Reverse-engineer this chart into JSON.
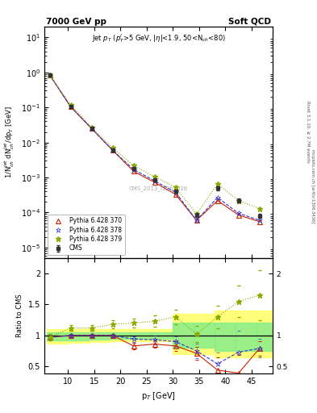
{
  "title_left": "7000 GeV pp",
  "title_right": "Soft QCD",
  "inner_title": "Jet $p_T$ ($p_T^l$>5 GeV, |$\\eta$|<1.9, 50<N$_{ch}$<80)",
  "ylabel_main": "1/N$_{ch}^{jet}$ dN$_{ch}^{jet}$/dp$_T$ [GeV]",
  "ylabel_ratio": "Ratio to CMS",
  "xlabel": "p$_T$ [GeV]",
  "watermark": "CMS_2013_I1261026",
  "rivet_text": "Rivet 3.1.10, ≥ 2.7M events",
  "mcplots_text": "mcplots.cern.ch [arXiv:1306.3436]",
  "cms_pt": [
    6.5,
    10.5,
    14.5,
    18.5,
    22.5,
    26.5,
    30.5,
    34.5,
    38.5,
    42.5,
    46.5
  ],
  "cms_y": [
    0.85,
    0.105,
    0.025,
    0.006,
    0.0018,
    0.00085,
    0.0004,
    8.5e-05,
    0.0005,
    0.00022,
    8e-05
  ],
  "cms_yerr": [
    0.06,
    0.008,
    0.002,
    0.0004,
    0.00012,
    6e-05,
    3e-05,
    1e-05,
    6e-05,
    3e-05,
    1e-05
  ],
  "p370_pt": [
    6.5,
    10.5,
    14.5,
    18.5,
    22.5,
    26.5,
    30.5,
    34.5,
    38.5,
    42.5,
    46.5
  ],
  "p370_y": [
    0.85,
    0.105,
    0.025,
    0.006,
    0.0015,
    0.00073,
    0.00033,
    6e-05,
    0.00022,
    8.5e-05,
    5.5e-05
  ],
  "p378_pt": [
    6.5,
    10.5,
    14.5,
    18.5,
    22.5,
    26.5,
    30.5,
    34.5,
    38.5,
    42.5,
    46.5
  ],
  "p378_y": [
    0.85,
    0.105,
    0.025,
    0.006,
    0.0017,
    0.0008,
    0.00038,
    6e-05,
    0.00027,
    9.5e-05,
    6e-05
  ],
  "p379_pt": [
    6.5,
    10.5,
    14.5,
    18.5,
    22.5,
    26.5,
    30.5,
    34.5,
    38.5,
    42.5,
    46.5
  ],
  "p379_y": [
    0.85,
    0.12,
    0.027,
    0.007,
    0.0022,
    0.00105,
    0.00053,
    9e-05,
    0.00065,
    0.00022,
    0.00013
  ],
  "ratio_370": [
    0.97,
    1.0,
    1.0,
    1.0,
    0.83,
    0.86,
    0.83,
    0.71,
    0.44,
    0.39,
    0.79
  ],
  "ratio_370_err": [
    0.04,
    0.03,
    0.03,
    0.03,
    0.05,
    0.06,
    0.08,
    0.1,
    0.2,
    0.3,
    0.12
  ],
  "ratio_378": [
    0.97,
    1.0,
    1.0,
    1.0,
    0.94,
    0.93,
    0.9,
    0.75,
    0.54,
    0.73,
    0.79
  ],
  "ratio_378_err": [
    0.04,
    0.03,
    0.03,
    0.03,
    0.05,
    0.07,
    0.09,
    0.12,
    0.18,
    0.35,
    0.15
  ],
  "ratio_379": [
    0.97,
    1.12,
    1.12,
    1.18,
    1.2,
    1.23,
    1.3,
    1.02,
    1.3,
    1.55,
    1.65
  ],
  "ratio_379_err": [
    0.05,
    0.05,
    0.05,
    0.07,
    0.07,
    0.09,
    0.12,
    0.13,
    0.18,
    0.25,
    0.4
  ],
  "band_x_edges": [
    6.0,
    10.0,
    14.0,
    18.0,
    22.0,
    26.0,
    30.0,
    34.0,
    38.0,
    42.0,
    46.0,
    50.0
  ],
  "band_yellow_lo": [
    0.87,
    0.88,
    0.89,
    0.9,
    0.9,
    0.9,
    0.7,
    0.7,
    0.65,
    0.65,
    0.65
  ],
  "band_yellow_hi": [
    1.1,
    1.1,
    1.1,
    1.1,
    1.1,
    1.1,
    1.35,
    1.35,
    1.4,
    1.4,
    1.4
  ],
  "band_green_lo": [
    0.92,
    0.92,
    0.93,
    0.94,
    0.94,
    0.94,
    0.8,
    0.8,
    0.75,
    0.75,
    0.75
  ],
  "band_green_hi": [
    1.05,
    1.05,
    1.05,
    1.05,
    1.05,
    1.05,
    1.2,
    1.2,
    1.2,
    1.2,
    1.2
  ],
  "cms_color": "#333333",
  "p370_color": "#cc2200",
  "p378_color": "#3333cc",
  "p379_color": "#88aa00",
  "band_yellow": "#ffff66",
  "band_green": "#88ee88",
  "ylim_main": [
    5e-06,
    20
  ],
  "ylim_ratio": [
    0.38,
    2.25
  ],
  "xlim": [
    5.5,
    49
  ]
}
